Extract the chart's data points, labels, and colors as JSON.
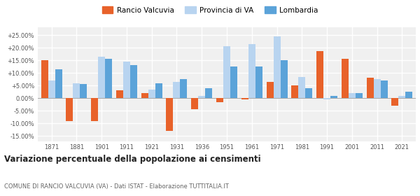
{
  "years": [
    1871,
    1881,
    1901,
    1911,
    1921,
    1931,
    1936,
    1951,
    1961,
    1971,
    1981,
    1991,
    2001,
    2011,
    2021
  ],
  "rancio": [
    15.0,
    -9.0,
    -9.0,
    3.0,
    2.0,
    -13.0,
    -4.5,
    -1.5,
    -0.5,
    6.5,
    5.0,
    18.5,
    15.5,
    8.0,
    -3.0
  ],
  "provincia": [
    7.0,
    6.0,
    16.5,
    14.5,
    3.5,
    6.5,
    1.0,
    20.5,
    21.5,
    24.5,
    8.5,
    -0.5,
    2.0,
    7.5,
    1.0
  ],
  "lombardia": [
    11.5,
    5.5,
    15.5,
    13.0,
    6.0,
    7.5,
    4.0,
    12.5,
    12.5,
    15.0,
    4.0,
    1.0,
    2.0,
    7.0,
    2.5
  ],
  "color_rancio": "#e8622a",
  "color_provincia": "#b8d4f0",
  "color_lombardia": "#5ba3d9",
  "title": "Variazione percentuale della popolazione ai censimenti",
  "subtitle": "COMUNE DI RANCIO VALCUVIA (VA) - Dati ISTAT - Elaborazione TUTTITALIA.IT",
  "yticks": [
    -15,
    -10,
    -5,
    0,
    5,
    10,
    15,
    20,
    25
  ],
  "ylim": [
    -17,
    28
  ],
  "background": "#ffffff",
  "plot_bg": "#f0f0f0",
  "grid_color": "#ffffff"
}
